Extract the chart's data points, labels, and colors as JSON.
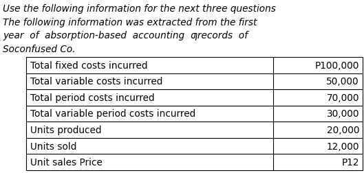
{
  "header_lines": [
    "Use the following information for the next three questions",
    "The following information was extracted from the first",
    "year  of  absorption-based  accounting  ƣrecords  of",
    "Soconfused Co."
  ],
  "rows": [
    [
      "Total fixed costs incurred",
      "P100,000"
    ],
    [
      "Total variable costs incurred",
      "50,000"
    ],
    [
      "Total period costs incurred",
      "70,000"
    ],
    [
      "Total variable period costs incurred",
      "30,000"
    ],
    [
      "Units produced",
      "20,000"
    ],
    [
      "Units sold",
      "12,000"
    ],
    [
      "Unit sales Price",
      "P12"
    ]
  ],
  "bg_color": "#ffffff",
  "text_color": "#000000",
  "header_font_size": 9.8,
  "table_font_size": 9.8,
  "fig_width": 5.29,
  "fig_height": 2.53,
  "dpi": 100
}
